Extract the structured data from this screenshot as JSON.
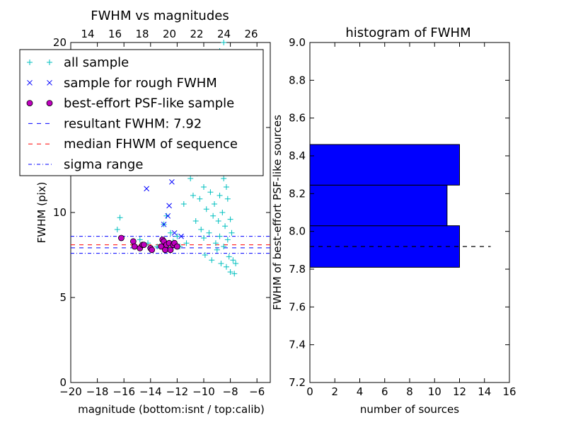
{
  "chart_data": [
    {
      "type": "scatter",
      "title": "FWHM vs magnitudes",
      "xlabel": "magnitude (bottom:isnt / top:calib)",
      "ylabel": "FWHM (pix)",
      "xlim": [
        -20,
        -5
      ],
      "ylim": [
        0,
        20
      ],
      "xticks": [
        "−20",
        "−18",
        "−16",
        "−14",
        "−12",
        "−10",
        "−8",
        "−6"
      ],
      "yticks": [
        "0",
        "5",
        "10",
        "15",
        "20"
      ],
      "top_xticks": [
        "14",
        "16",
        "18",
        "20",
        "22",
        "24",
        "26"
      ],
      "legend": {
        "placement": "upper-left",
        "entries": [
          {
            "label": "all sample",
            "marker": "+",
            "color": "#00bfbf"
          },
          {
            "label": "sample for rough FWHM",
            "marker": "x",
            "color": "#0000ff"
          },
          {
            "label": "best-effort PSF-like sample",
            "marker": "o",
            "color": "#bf00bf"
          },
          {
            "label": "resultant FWHM: 7.92",
            "line": "dashed",
            "color": "#0000ff"
          },
          {
            "label": "median FHWM of sequence",
            "line": "dashed",
            "color": "#ff0000"
          },
          {
            "label": "sigma range",
            "line": "dashdot",
            "color": "#0000ff"
          }
        ]
      },
      "lines": [
        {
          "name": "resultant FWHM",
          "y": 7.92
        },
        {
          "name": "median FHWM of sequence",
          "y": 8.1
        },
        {
          "name": "sigma range",
          "y": [
            7.6,
            8.6
          ]
        }
      ],
      "series": [
        {
          "name": "all sample",
          "points": [
            [
              -16.5,
              9.0
            ],
            [
              -16.3,
              9.7
            ],
            [
              -14.8,
              8.4
            ],
            [
              -14.2,
              8.2
            ],
            [
              -13.5,
              8.0
            ],
            [
              -13.0,
              9.3
            ],
            [
              -12.8,
              9.8
            ],
            [
              -12.5,
              8.8
            ],
            [
              -12.3,
              8.3
            ],
            [
              -12.0,
              8.6
            ],
            [
              -11.8,
              8.0
            ],
            [
              -11.5,
              10.5
            ],
            [
              -11.3,
              8.2
            ],
            [
              -11.0,
              12.0
            ],
            [
              -10.8,
              11.0
            ],
            [
              -10.6,
              9.5
            ],
            [
              -10.5,
              12.3
            ],
            [
              -10.3,
              10.8
            ],
            [
              -10.2,
              9.0
            ],
            [
              -10.0,
              11.5
            ],
            [
              -10.0,
              8.5
            ],
            [
              -9.9,
              7.5
            ],
            [
              -9.8,
              10.2
            ],
            [
              -9.7,
              13.0
            ],
            [
              -9.6,
              8.8
            ],
            [
              -9.5,
              11.2
            ],
            [
              -9.4,
              7.2
            ],
            [
              -9.3,
              9.8
            ],
            [
              -9.2,
              14.0
            ],
            [
              -9.2,
              10.5
            ],
            [
              -9.1,
              8.2
            ],
            [
              -9.0,
              12.5
            ],
            [
              -9.0,
              7.8
            ],
            [
              -8.9,
              9.5
            ],
            [
              -8.9,
              15.0
            ],
            [
              -8.8,
              11.0
            ],
            [
              -8.8,
              8.6
            ],
            [
              -8.7,
              13.5
            ],
            [
              -8.7,
              7.0
            ],
            [
              -8.6,
              10.0
            ],
            [
              -8.6,
              16.5
            ],
            [
              -8.5,
              12.0
            ],
            [
              -8.5,
              8.0
            ],
            [
              -8.4,
              9.2
            ],
            [
              -8.4,
              14.5
            ],
            [
              -8.3,
              11.5
            ],
            [
              -8.3,
              6.8
            ],
            [
              -8.2,
              10.8
            ],
            [
              -8.2,
              8.4
            ],
            [
              -8.1,
              13.0
            ],
            [
              -8.1,
              7.4
            ],
            [
              -8.0,
              9.6
            ],
            [
              -8.0,
              6.5
            ],
            [
              -7.9,
              8.8
            ],
            [
              -7.8,
              7.2
            ],
            [
              -7.7,
              6.4
            ],
            [
              -7.6,
              7.0
            ],
            [
              -9.5,
              17.0
            ],
            [
              -9.0,
              18.5
            ],
            [
              -8.8,
              19.5
            ],
            [
              -8.5,
              20.0
            ],
            [
              -10.0,
              17.5
            ],
            [
              -8.3,
              16.0
            ]
          ]
        },
        {
          "name": "sample for rough FWHM",
          "points": [
            [
              -14.3,
              11.4
            ],
            [
              -13.0,
              9.3
            ],
            [
              -12.7,
              9.8
            ],
            [
              -12.6,
              10.4
            ],
            [
              -12.4,
              11.8
            ],
            [
              -12.2,
              8.8
            ],
            [
              -11.7,
              8.6
            ]
          ]
        },
        {
          "name": "best-effort PSF-like sample",
          "points": [
            [
              -16.2,
              8.5
            ],
            [
              -15.3,
              8.3
            ],
            [
              -15.2,
              8.0
            ],
            [
              -14.8,
              7.9
            ],
            [
              -14.6,
              8.1
            ],
            [
              -14.5,
              8.1
            ],
            [
              -14.0,
              7.9
            ],
            [
              -13.9,
              7.8
            ],
            [
              -13.2,
              8.0
            ],
            [
              -13.1,
              8.4
            ],
            [
              -13.0,
              8.3
            ],
            [
              -12.9,
              7.8
            ],
            [
              -12.8,
              8.1
            ],
            [
              -12.6,
              8.2
            ],
            [
              -12.5,
              7.8
            ],
            [
              -12.3,
              8.1
            ],
            [
              -12.2,
              8.2
            ],
            [
              -12.0,
              8.0
            ]
          ]
        }
      ]
    },
    {
      "type": "bar",
      "orientation": "horizontal",
      "title": "histogram of FWHM",
      "xlabel": "number of sources",
      "ylabel": "FWHM of best-effort PSF-like sources",
      "xlim": [
        0,
        16
      ],
      "ylim": [
        7.2,
        9.0
      ],
      "xticks": [
        "0",
        "2",
        "4",
        "6",
        "8",
        "10",
        "12",
        "14",
        "16"
      ],
      "yticks": [
        "7.2",
        "7.4",
        "7.6",
        "7.8",
        "8.0",
        "8.2",
        "8.4",
        "8.6",
        "8.8",
        "9.0"
      ],
      "bins": [
        {
          "y0": 7.81,
          "y1": 8.03,
          "count": 12
        },
        {
          "y0": 8.03,
          "y1": 8.245,
          "count": 11
        },
        {
          "y0": 8.245,
          "y1": 8.46,
          "count": 12
        }
      ],
      "bar_color": "#0000ff",
      "reference_line": {
        "y": 7.92,
        "x_end": 14.5,
        "style": "dashed",
        "color": "#000000"
      }
    }
  ]
}
